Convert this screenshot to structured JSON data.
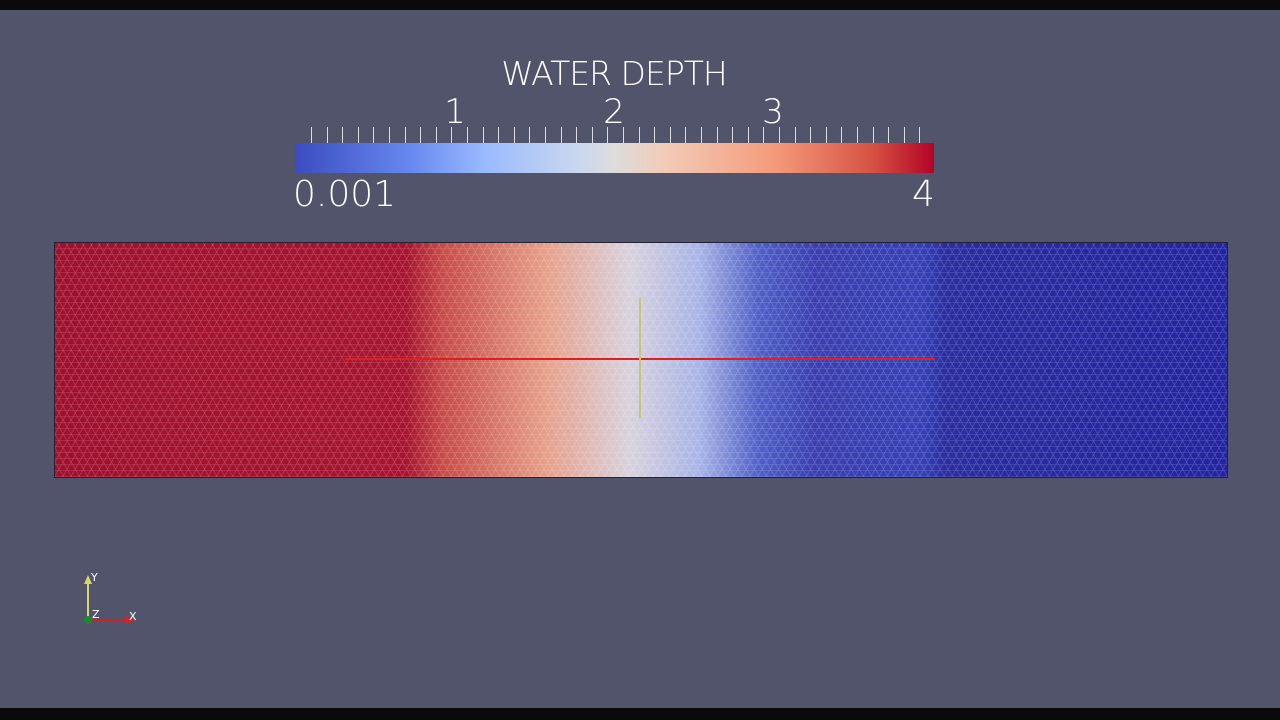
{
  "colorbar": {
    "title": "WATER DEPTH",
    "min_label": "0.001",
    "max_label": "4",
    "range": [
      0.001,
      4
    ],
    "tick_labels": [
      "1",
      "2",
      "3"
    ],
    "colormap": "cool-to-warm",
    "colors": {
      "low": "#3b4cc0",
      "mid": "#dddcdc",
      "high": "#b40426"
    }
  },
  "axes": {
    "x": "X",
    "y": "Y",
    "z": "Z"
  },
  "colors": {
    "background": "#52546b"
  }
}
